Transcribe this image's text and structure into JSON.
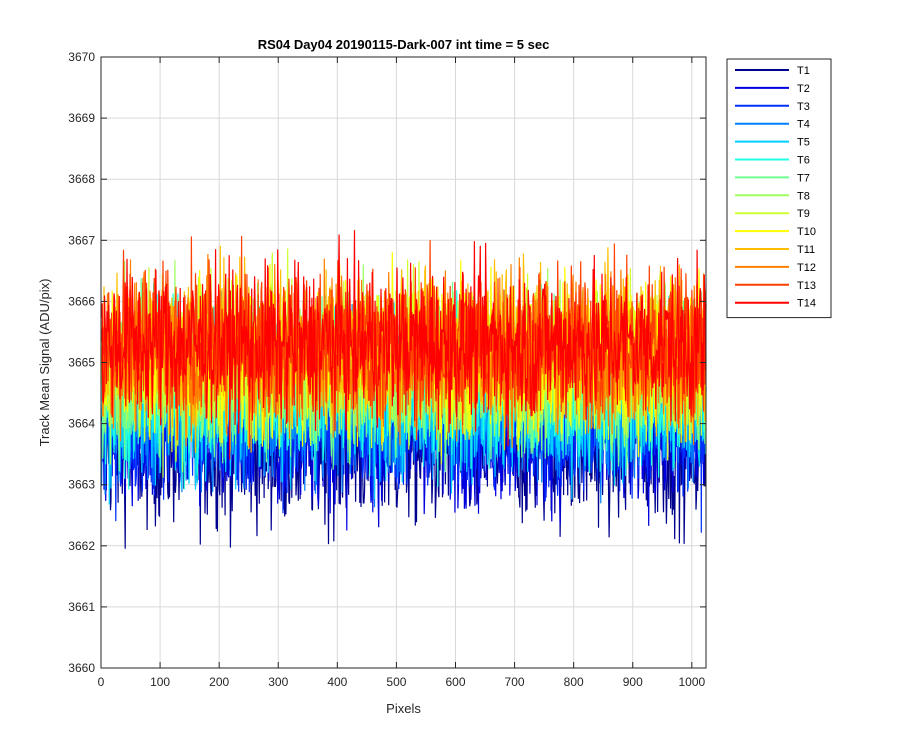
{
  "chart_data": {
    "type": "line",
    "title": "RS04 Day04 20190115-Dark-007 int time = 5 sec",
    "xlabel": "Pixels",
    "ylabel": "Track Mean Signal (ADU/pix)",
    "xlim": [
      0,
      1024
    ],
    "ylim": [
      3660,
      3670
    ],
    "xticks": [
      0,
      100,
      200,
      300,
      400,
      500,
      600,
      700,
      800,
      900,
      1000
    ],
    "yticks": [
      3660,
      3661,
      3662,
      3663,
      3664,
      3665,
      3666,
      3667,
      3668,
      3669,
      3670
    ],
    "grid": true,
    "legend_position": "outside-top-right",
    "x_range": [
      1,
      1024
    ],
    "series": [
      {
        "name": "T1",
        "color": "#00008F",
        "mean": 3663.6,
        "amplitude": 1.2
      },
      {
        "name": "T2",
        "color": "#0000DF",
        "mean": 3663.9,
        "amplitude": 1.2
      },
      {
        "name": "T3",
        "color": "#0030FF",
        "mean": 3664.1,
        "amplitude": 1.2
      },
      {
        "name": "T4",
        "color": "#0080FF",
        "mean": 3664.3,
        "amplitude": 1.2
      },
      {
        "name": "T5",
        "color": "#00CFFF",
        "mean": 3664.4,
        "amplitude": 1.2
      },
      {
        "name": "T6",
        "color": "#20FFDF",
        "mean": 3664.6,
        "amplitude": 1.2
      },
      {
        "name": "T7",
        "color": "#70FF8F",
        "mean": 3664.8,
        "amplitude": 1.2
      },
      {
        "name": "T8",
        "color": "#9FFF60",
        "mean": 3664.9,
        "amplitude": 1.2
      },
      {
        "name": "T9",
        "color": "#CFFF30",
        "mean": 3665.0,
        "amplitude": 1.2
      },
      {
        "name": "T10",
        "color": "#FFFF00",
        "mean": 3665.1,
        "amplitude": 1.2
      },
      {
        "name": "T11",
        "color": "#FFBF00",
        "mean": 3665.2,
        "amplitude": 1.2
      },
      {
        "name": "T12",
        "color": "#FF8000",
        "mean": 3665.2,
        "amplitude": 1.2
      },
      {
        "name": "T13",
        "color": "#FF4000",
        "mean": 3665.3,
        "amplitude": 1.2
      },
      {
        "name": "T14",
        "color": "#FF0000",
        "mean": 3665.3,
        "amplitude": 1.2
      }
    ]
  }
}
